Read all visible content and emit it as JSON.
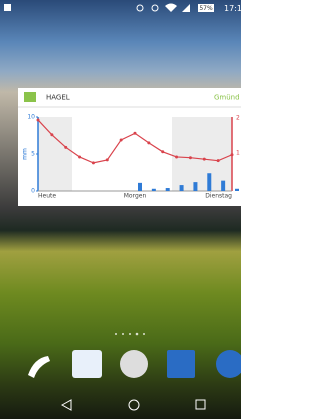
{
  "status_bar": {
    "battery": "57%",
    "time": "17:1"
  },
  "widget": {
    "title": "HAGEL",
    "location": "Gmünd",
    "right_axis_labels": [
      "2",
      "1"
    ],
    "chart_data": {
      "type": "line",
      "y_label": "mm",
      "categories": [
        "Heute",
        null,
        null,
        null,
        null,
        null,
        null,
        "Morgen",
        null,
        null,
        null,
        null,
        null,
        null,
        "Dienstag"
      ],
      "ylim": [
        0,
        10
      ],
      "yticks": [
        0,
        5,
        10
      ],
      "series": [
        {
          "color": "#d9434c",
          "values": [
            9.6,
            7.6,
            5.9,
            4.6,
            3.8,
            4.2,
            6.9,
            7.8,
            6.5,
            5.3,
            4.6,
            4.5,
            4.3,
            4.1,
            4.9
          ]
        },
        {
          "color": "#2f7bd6",
          "type": "bar",
          "values": [
            null,
            null,
            null,
            null,
            null,
            null,
            null,
            1.1,
            0.3,
            0.4,
            0.8,
            1.2,
            2.4,
            1.4,
            0.3
          ]
        }
      ]
    }
  }
}
